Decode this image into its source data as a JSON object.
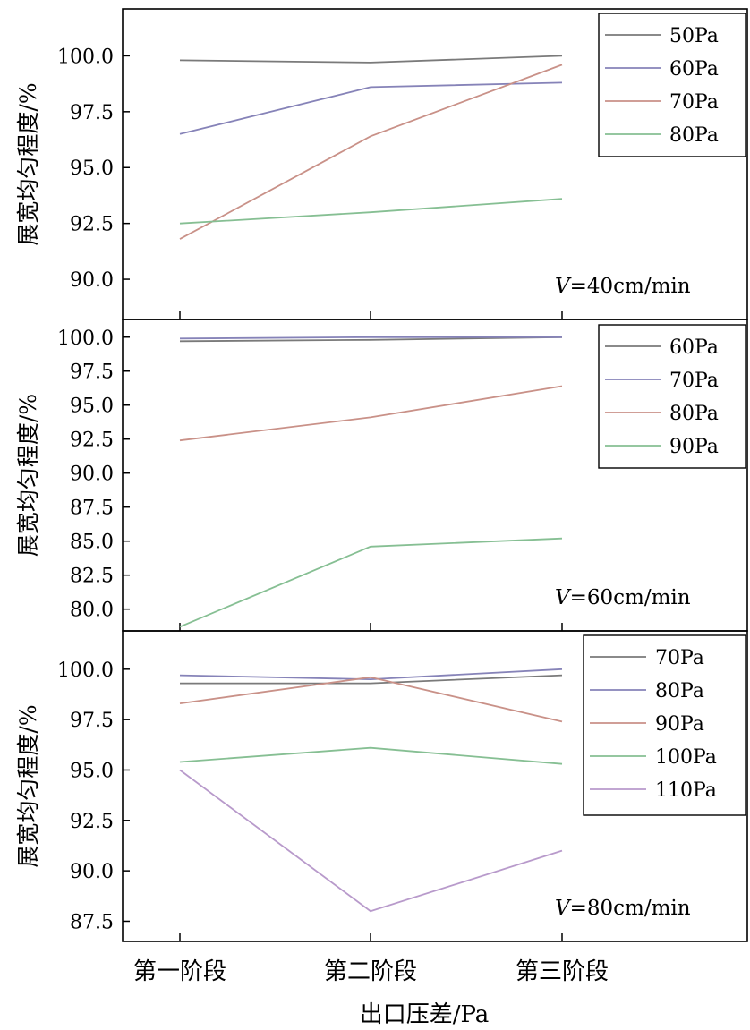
{
  "chart_data": {
    "type": "line",
    "categories": [
      "第一阶段",
      "第二阶段",
      "第三阶段"
    ],
    "xlabel": "出口压差/Pa",
    "panels": [
      {
        "ylabel": "展宽均匀程度/%",
        "ylim": [
          88.2,
          102.1
        ],
        "yticks": [
          90.0,
          92.5,
          95.0,
          97.5,
          100.0
        ],
        "annotation_italic": "V",
        "annotation_rest": "=40cm/min",
        "series": [
          {
            "name": "50Pa",
            "color": "#7a7a7a",
            "values": [
              99.8,
              99.7,
              100.0
            ]
          },
          {
            "name": "60Pa",
            "color": "#8683b8",
            "values": [
              96.5,
              98.6,
              98.8
            ]
          },
          {
            "name": "70Pa",
            "color": "#c99188",
            "values": [
              91.8,
              96.4,
              99.6
            ]
          },
          {
            "name": "80Pa",
            "color": "#86bf93",
            "values": [
              92.5,
              93.0,
              93.6
            ]
          }
        ]
      },
      {
        "ylabel": "展宽均匀程度/%",
        "ylim": [
          78.4,
          101.3
        ],
        "yticks": [
          80.0,
          82.5,
          85.0,
          87.5,
          90.0,
          92.5,
          95.0,
          97.5,
          100.0
        ],
        "annotation_italic": "V",
        "annotation_rest": "=60cm/min",
        "series": [
          {
            "name": "60Pa",
            "color": "#7a7a7a",
            "values": [
              99.7,
              99.8,
              100.0
            ]
          },
          {
            "name": "70Pa",
            "color": "#8683b8",
            "values": [
              99.9,
              100.0,
              100.0
            ]
          },
          {
            "name": "80Pa",
            "color": "#c99188",
            "values": [
              92.4,
              94.1,
              96.4
            ]
          },
          {
            "name": "90Pa",
            "color": "#86bf93",
            "values": [
              78.7,
              84.6,
              85.2
            ]
          }
        ]
      },
      {
        "ylabel": "展宽均匀程度/%",
        "ylim": [
          86.5,
          101.9
        ],
        "yticks": [
          87.5,
          90.0,
          92.5,
          95.0,
          97.5,
          100.0
        ],
        "annotation_italic": "V",
        "annotation_rest": "=80cm/min",
        "series": [
          {
            "name": "70Pa",
            "color": "#7a7a7a",
            "values": [
              99.3,
              99.3,
              99.7
            ]
          },
          {
            "name": "80Pa",
            "color": "#8683b8",
            "values": [
              99.7,
              99.5,
              100.0
            ]
          },
          {
            "name": "90Pa",
            "color": "#c99188",
            "values": [
              98.3,
              99.6,
              97.4
            ]
          },
          {
            "name": "100Pa",
            "color": "#86bf93",
            "values": [
              95.4,
              96.1,
              95.3
            ]
          },
          {
            "name": "110Pa",
            "color": "#b89acb",
            "values": [
              95.0,
              88.0,
              91.0
            ]
          }
        ]
      }
    ]
  }
}
